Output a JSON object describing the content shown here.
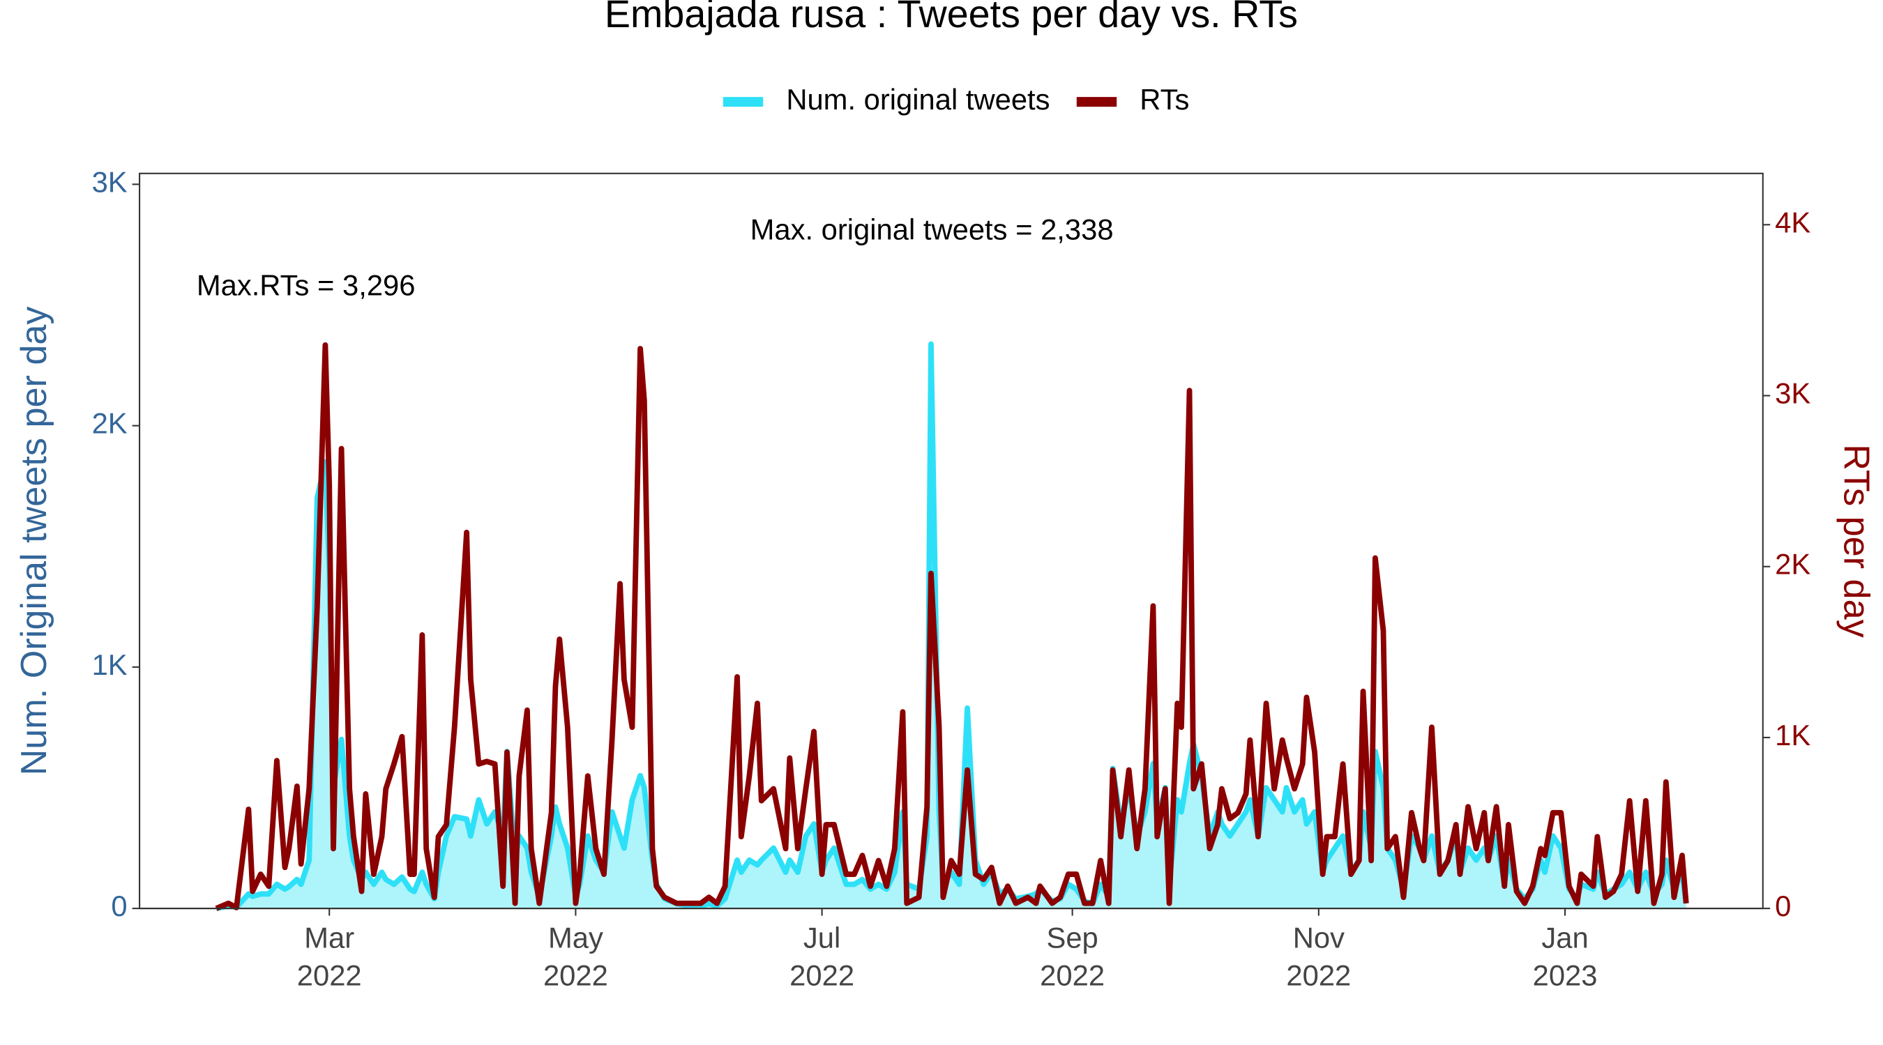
{
  "chart_data": {
    "type": "line",
    "title": "Embajada rusa : Tweets per day vs. RTs",
    "ylabel": "Num. Original tweets per day",
    "y2label": "RTs per day",
    "legend": "top",
    "annotations": [
      "Max. original tweets = 2,338",
      "Max.RTs = 3,296"
    ],
    "xlim": [
      12,
      414
    ],
    "xticks": [
      {
        "value": 59,
        "label": "Mar 2022"
      },
      {
        "value": 120,
        "label": "May 2022"
      },
      {
        "value": 181,
        "label": "Jul 2022"
      },
      {
        "value": 243,
        "label": "Sep 2022"
      },
      {
        "value": 304,
        "label": "Nov 2022"
      },
      {
        "value": 365,
        "label": "Jan 2023"
      }
    ],
    "ylim": [
      0,
      3045
    ],
    "yticks": [
      0,
      {
        "value": 1000,
        "label": "1K"
      },
      {
        "value": 2000,
        "label": "2K"
      },
      {
        "value": 3000,
        "label": "3K"
      }
    ],
    "y2lim": [
      0,
      4300
    ],
    "y2ticks": [
      0,
      {
        "value": 1000,
        "label": "1K"
      },
      {
        "value": 2000,
        "label": "2K"
      },
      {
        "value": 3000,
        "label": "3K"
      },
      {
        "value": 4000,
        "label": "4K"
      }
    ],
    "x": [
      31,
      34,
      36,
      39,
      40,
      42,
      44,
      46,
      48,
      49,
      51,
      52,
      54,
      56,
      58,
      59,
      60,
      62,
      64,
      65,
      67,
      68,
      70,
      72,
      73,
      75,
      77,
      79,
      80,
      82,
      83,
      85,
      86,
      88,
      90,
      93,
      94,
      96,
      98,
      100,
      102,
      103,
      105,
      106,
      108,
      109,
      111,
      114,
      115,
      116,
      118,
      120,
      121,
      123,
      125,
      127,
      129,
      131,
      132,
      134,
      136,
      137,
      139,
      140,
      142,
      145,
      148,
      151,
      153,
      155,
      157,
      160,
      161,
      163,
      165,
      166,
      169,
      172,
      173,
      175,
      177,
      179,
      181,
      182,
      184,
      187,
      189,
      191,
      193,
      195,
      197,
      199,
      201,
      202,
      205,
      207,
      208,
      210,
      211,
      213,
      215,
      217,
      219,
      221,
      223,
      225,
      227,
      229,
      232,
      234,
      235,
      238,
      240,
      242,
      244,
      246,
      248,
      250,
      252,
      253,
      255,
      257,
      259,
      261,
      263,
      264,
      266,
      267,
      269,
      270,
      272,
      273,
      275,
      277,
      279,
      280,
      282,
      284,
      286,
      287,
      289,
      291,
      293,
      295,
      296,
      298,
      300,
      301,
      303,
      305,
      306,
      308,
      310,
      312,
      314,
      315,
      317,
      318,
      320,
      321,
      323,
      325,
      327,
      329,
      330,
      332,
      334,
      336,
      338,
      339,
      341,
      343,
      345,
      346,
      348,
      350,
      351,
      353,
      355,
      357,
      359,
      360,
      362,
      364,
      366,
      368,
      369,
      372,
      373,
      375,
      377,
      379,
      381,
      383,
      385,
      387,
      389,
      390,
      392,
      394,
      395
    ],
    "series": [
      {
        "name": "Num. original tweets",
        "color": "#2ee0f7",
        "fill": "#aef4fb",
        "axis": "y",
        "area": true,
        "values": [
          0,
          10,
          5,
          60,
          50,
          60,
          60,
          100,
          80,
          90,
          120,
          100,
          200,
          1700,
          1850,
          1400,
          500,
          700,
          300,
          200,
          120,
          150,
          100,
          150,
          120,
          100,
          130,
          80,
          70,
          150,
          100,
          40,
          150,
          300,
          380,
          370,
          300,
          450,
          350,
          400,
          300,
          650,
          200,
          300,
          250,
          150,
          50,
          300,
          420,
          350,
          250,
          50,
          100,
          300,
          200,
          150,
          400,
          300,
          250,
          450,
          550,
          500,
          200,
          100,
          40,
          20,
          10,
          10,
          20,
          10,
          40,
          200,
          150,
          200,
          180,
          200,
          250,
          150,
          200,
          150,
          300,
          350,
          150,
          200,
          250,
          100,
          100,
          120,
          80,
          100,
          80,
          150,
          400,
          100,
          80,
          300,
          2338,
          400,
          100,
          150,
          100,
          830,
          200,
          100,
          150,
          60,
          80,
          40,
          50,
          60,
          80,
          30,
          40,
          100,
          80,
          30,
          20,
          100,
          50,
          580,
          350,
          500,
          300,
          400,
          600,
          350,
          500,
          100,
          450,
          400,
          600,
          680,
          550,
          300,
          400,
          350,
          300,
          350,
          400,
          450,
          300,
          500,
          450,
          400,
          500,
          400,
          450,
          350,
          400,
          150,
          200,
          250,
          300,
          150,
          200,
          400,
          250,
          650,
          500,
          250,
          200,
          80,
          300,
          250,
          200,
          300,
          150,
          200,
          300,
          150,
          250,
          200,
          250,
          200,
          300,
          100,
          200,
          80,
          40,
          80,
          200,
          150,
          300,
          250,
          80,
          40,
          100,
          80,
          150,
          60,
          80,
          100,
          150,
          80,
          150,
          60,
          100,
          200,
          80,
          150,
          20
        ]
      },
      {
        "name": "RTs",
        "color": "#8b0000",
        "axis": "y2",
        "values": [
          0,
          30,
          5,
          580,
          100,
          200,
          130,
          865,
          240,
          350,
          715,
          260,
          700,
          1770,
          3296,
          2475,
          350,
          2690,
          700,
          420,
          100,
          670,
          200,
          420,
          700,
          845,
          1005,
          200,
          200,
          1600,
          350,
          65,
          420,
          490,
          1060,
          2200,
          1340,
          845,
          860,
          845,
          130,
          915,
          30,
          775,
          1160,
          350,
          30,
          560,
          1300,
          1575,
          1060,
          30,
          200,
          775,
          350,
          200,
          985,
          1900,
          1340,
          1060,
          3275,
          2970,
          350,
          130,
          65,
          30,
          30,
          30,
          65,
          30,
          130,
          1355,
          420,
          775,
          1200,
          630,
          700,
          350,
          880,
          350,
          700,
          1035,
          200,
          490,
          490,
          200,
          200,
          310,
          130,
          280,
          130,
          350,
          1150,
          30,
          65,
          595,
          1960,
          1060,
          65,
          280,
          200,
          810,
          200,
          170,
          240,
          30,
          130,
          30,
          65,
          30,
          130,
          30,
          65,
          200,
          200,
          30,
          30,
          280,
          30,
          810,
          420,
          810,
          350,
          700,
          1770,
          420,
          700,
          30,
          1200,
          1060,
          3030,
          700,
          845,
          350,
          490,
          700,
          525,
          560,
          670,
          985,
          420,
          1200,
          700,
          985,
          880,
          700,
          845,
          1235,
          915,
          200,
          420,
          420,
          845,
          200,
          280,
          1270,
          280,
          2050,
          1625,
          350,
          420,
          65,
          560,
          350,
          280,
          1060,
          200,
          280,
          490,
          200,
          595,
          350,
          560,
          280,
          595,
          130,
          490,
          100,
          30,
          130,
          350,
          310,
          560,
          560,
          130,
          30,
          200,
          130,
          420,
          65,
          100,
          200,
          630,
          100,
          630,
          30,
          200,
          740,
          65,
          310,
          30
        ]
      }
    ]
  }
}
